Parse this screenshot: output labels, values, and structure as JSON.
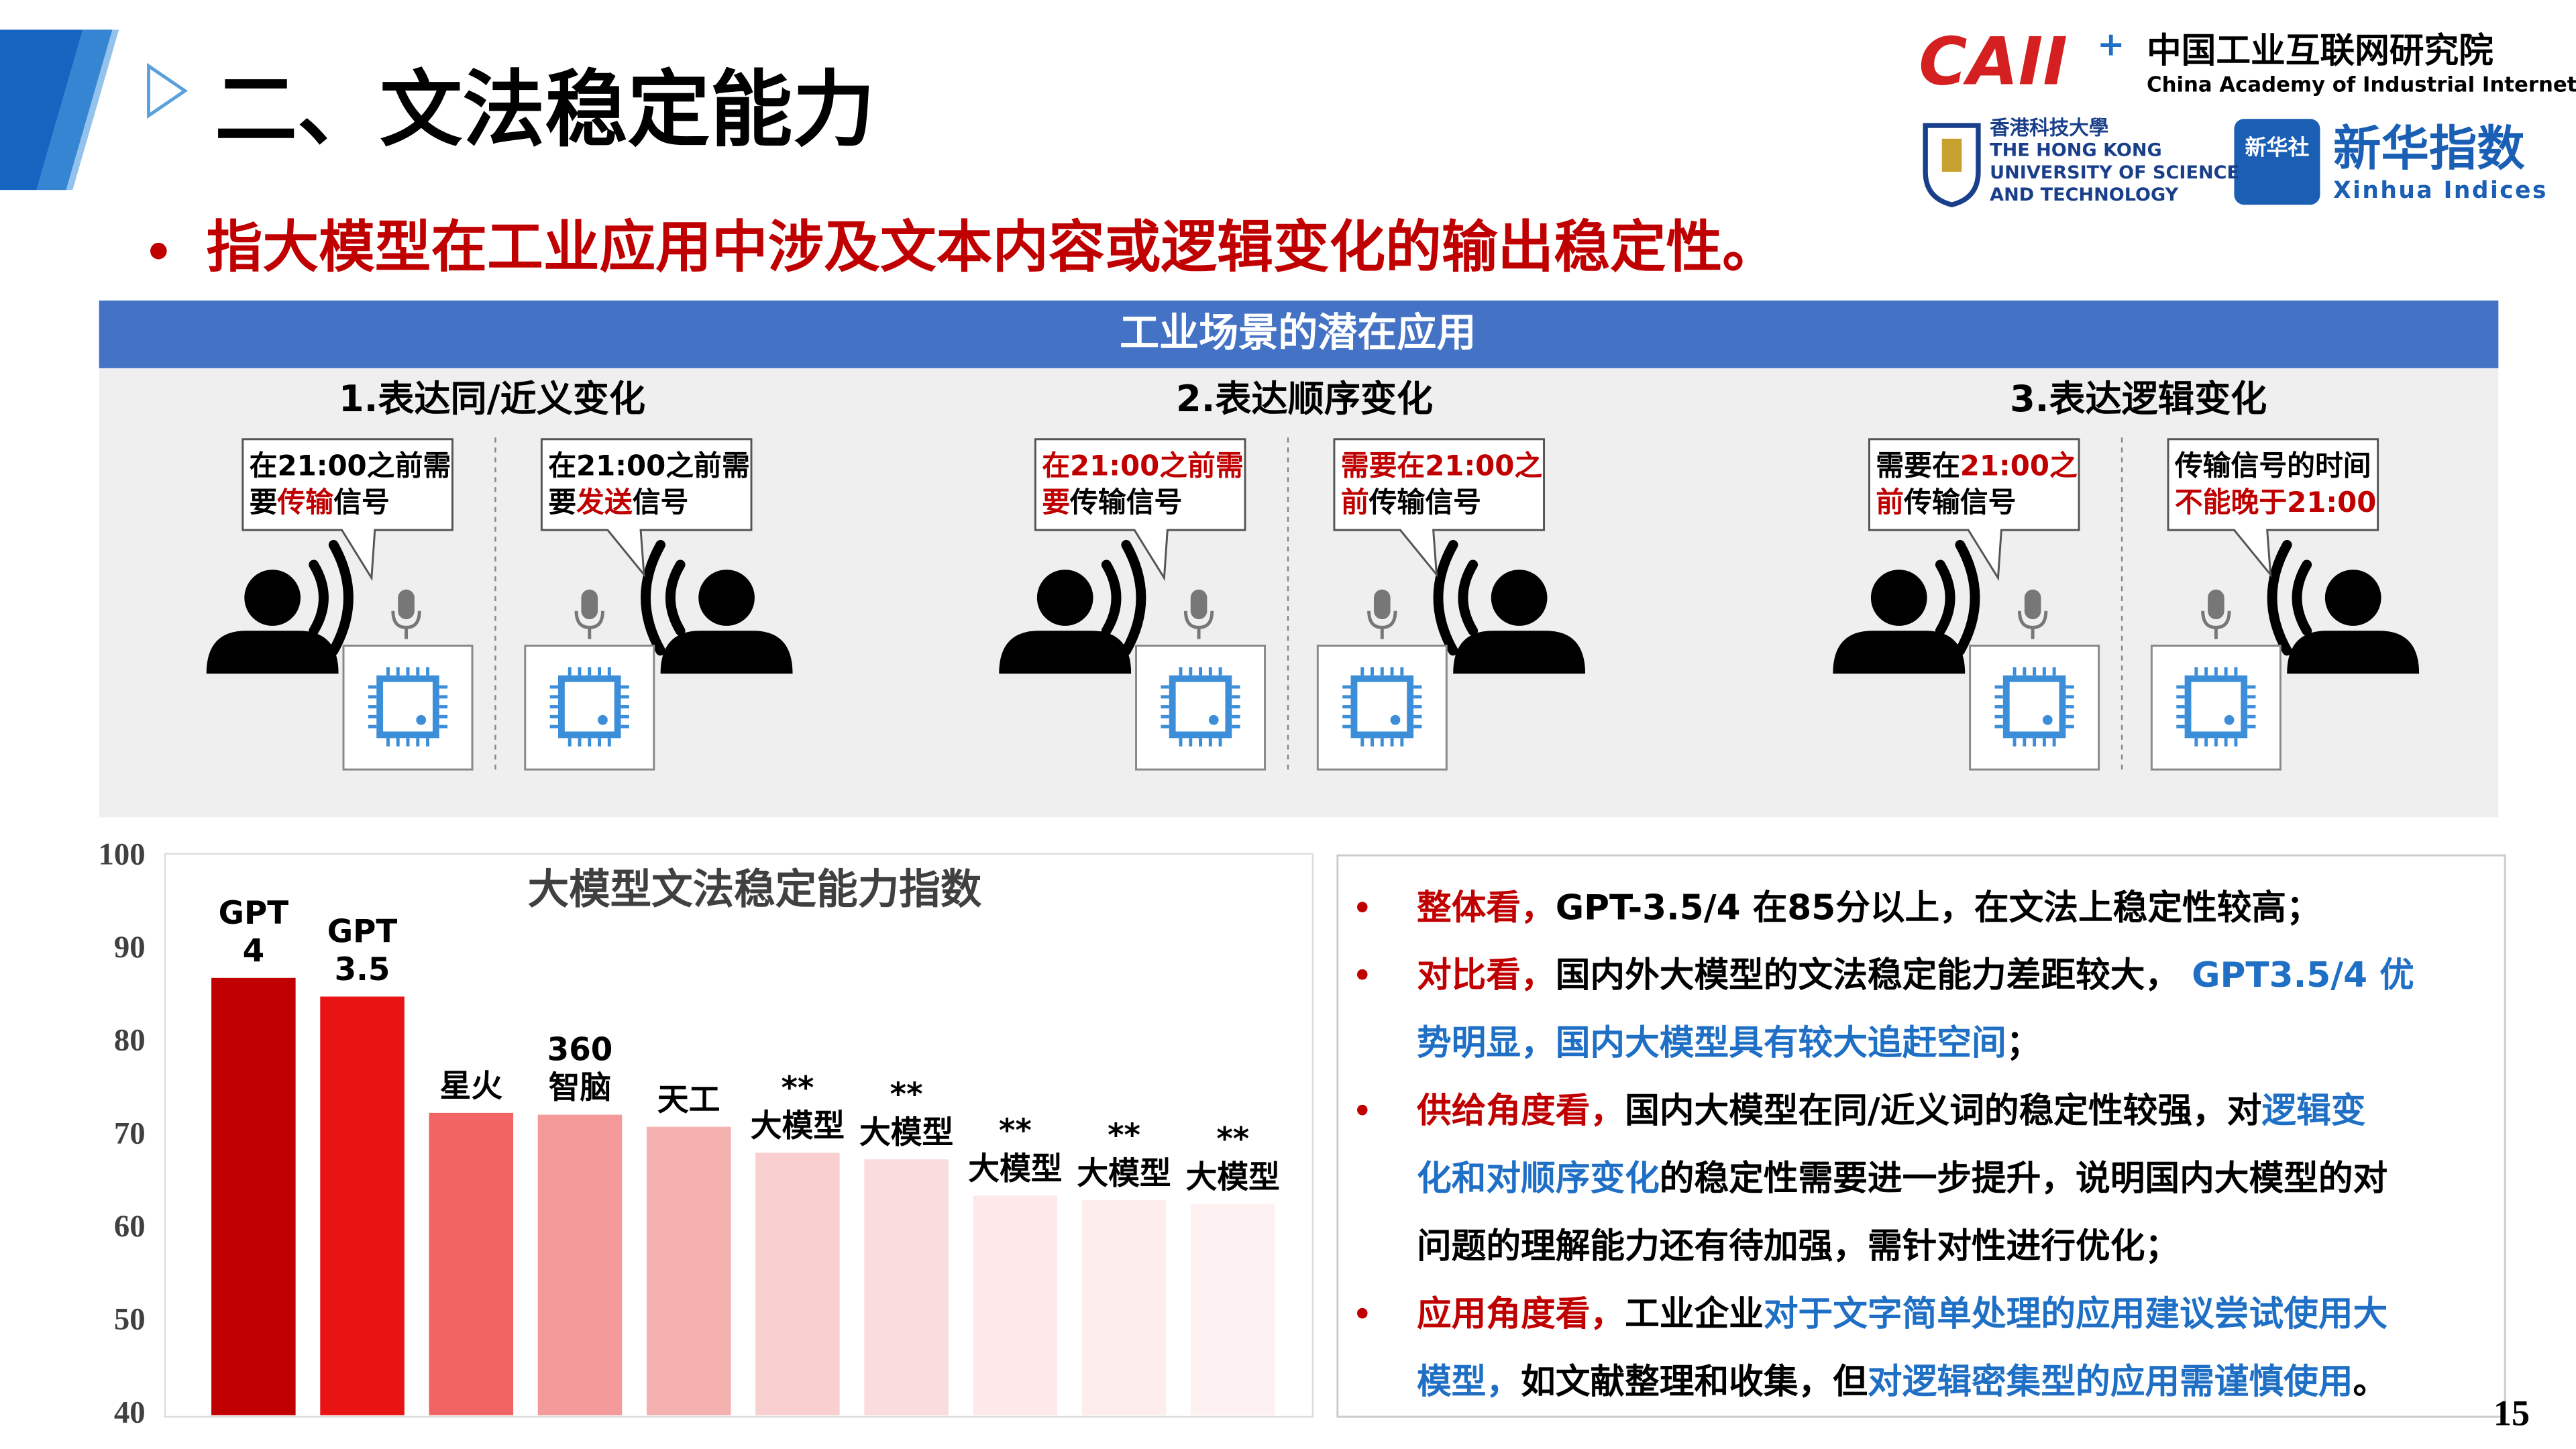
{
  "header": {
    "title": "二、文法稳定能力",
    "subtitle": "指大模型在工业应用中涉及文本内容或逻辑变化的输出稳定性。",
    "page_number": "15"
  },
  "logos": {
    "caii": "CAII",
    "caii_plus": "+",
    "caii_cn": "中国工业互联网研究院",
    "caii_en": "China Academy of Industrial Internet",
    "hkust_lines": [
      "香港科技大學",
      "THE HONG KONG",
      "UNIVERSITY OF SCIENCE",
      "AND TECHNOLOGY"
    ],
    "xinhua_badge": "新华社",
    "xinhua_cn": "新华指数",
    "xinhua_en": "Xinhua Indices"
  },
  "panel": {
    "banner": "工业场景的潜在应用",
    "scenarios": [
      {
        "title": "1.表达同/近义变化",
        "bubbles": [
          [
            [
              [
                "在21:00之前需",
                "#000000"
              ]
            ],
            [
              [
                "要",
                "#000000"
              ],
              [
                "传输",
                "#c00000"
              ],
              [
                "信号",
                "#000000"
              ]
            ]
          ],
          [
            [
              [
                "在21:00之前需",
                "#000000"
              ]
            ],
            [
              [
                "要",
                "#000000"
              ],
              [
                "发送",
                "#c00000"
              ],
              [
                "信号",
                "#000000"
              ]
            ]
          ]
        ]
      },
      {
        "title": "2.表达顺序变化",
        "bubbles": [
          [
            [
              [
                "在21:00之前需",
                "#c00000"
              ]
            ],
            [
              [
                "要",
                "#c00000"
              ],
              [
                "传输信号",
                "#000000"
              ]
            ]
          ],
          [
            [
              [
                "需要在21:00之",
                "#c00000"
              ]
            ],
            [
              [
                "前",
                "#c00000"
              ],
              [
                "传输信号",
                "#000000"
              ]
            ]
          ]
        ]
      },
      {
        "title": "3.表达逻辑变化",
        "bubbles": [
          [
            [
              [
                "需要在",
                "#000000"
              ],
              [
                "21:00之",
                "#c00000"
              ]
            ],
            [
              [
                "前",
                "#c00000"
              ],
              [
                "传输信号",
                "#000000"
              ]
            ]
          ],
          [
            [
              [
                "传输信号的时间",
                "#000000"
              ]
            ],
            [
              [
                "不能晚于21:00",
                "#c00000"
              ]
            ]
          ]
        ]
      }
    ]
  },
  "chart_data": {
    "type": "bar",
    "title": "大模型文法稳定能力指数",
    "categories": [
      [
        "GPT",
        "4"
      ],
      [
        "GPT",
        "3.5"
      ],
      [
        "星火"
      ],
      [
        "360",
        "智脑"
      ],
      [
        "天工"
      ],
      [
        "**",
        "大模型"
      ],
      [
        "**",
        "大模型"
      ],
      [
        "**",
        "大模型"
      ],
      [
        "**",
        "大模型"
      ],
      [
        "**",
        "大模型"
      ]
    ],
    "values": [
      87,
      85,
      72.5,
      72.3,
      71,
      68.2,
      67.5,
      63.6,
      63.1,
      62.7
    ],
    "colors": [
      "#c00000",
      "#e81414",
      "#f26464",
      "#f49a9a",
      "#f5b0b0",
      "#f9cfcf",
      "#fadcdc",
      "#fde9e9",
      "#fdeded",
      "#fef1f1"
    ],
    "ylim": [
      40,
      100
    ],
    "yticks": [
      40,
      50,
      60,
      70,
      80,
      90,
      100
    ],
    "grid": false
  },
  "findings": [
    [
      [
        [
          "整体看，",
          "#c00000"
        ],
        [
          "GPT-3.5/4 在85分以上，在文法上稳定性较高；",
          "#000000"
        ]
      ]
    ],
    [
      [
        [
          "对比看，",
          "#c00000"
        ],
        [
          "国内外大模型的文法稳定能力差距较大，",
          "#000000"
        ],
        [
          " GPT3.5/4 优",
          "#1f6fc5"
        ]
      ],
      [
        [
          "势明显，国内大模型具有较大追赶空间",
          "#1f6fc5"
        ],
        [
          "；",
          "#000000"
        ]
      ]
    ],
    [
      [
        [
          "供给角度看，",
          "#c00000"
        ],
        [
          "国内大模型在同/近义词的稳定性较强，对",
          "#000000"
        ],
        [
          "逻辑变",
          "#1f6fc5"
        ]
      ],
      [
        [
          "化和对顺序变化",
          "#1f6fc5"
        ],
        [
          "的稳定性需要进一步提升，说明国内大模型的对",
          "#000000"
        ]
      ],
      [
        [
          "问题的理解能力还有待加强，需针对性进行优化；",
          "#000000"
        ]
      ]
    ],
    [
      [
        [
          "应用角度看，",
          "#c00000"
        ],
        [
          "工业企业",
          "#000000"
        ],
        [
          "对于文字简单处理的应用建议尝试使用大",
          "#1f6fc5"
        ]
      ],
      [
        [
          "模型，",
          "#1f6fc5"
        ],
        [
          "如文献整理和收集，但",
          "#000000"
        ],
        [
          "对逻辑密集型的应用需谨慎使用",
          "#1f6fc5"
        ],
        [
          "。",
          "#000000"
        ]
      ]
    ]
  ]
}
